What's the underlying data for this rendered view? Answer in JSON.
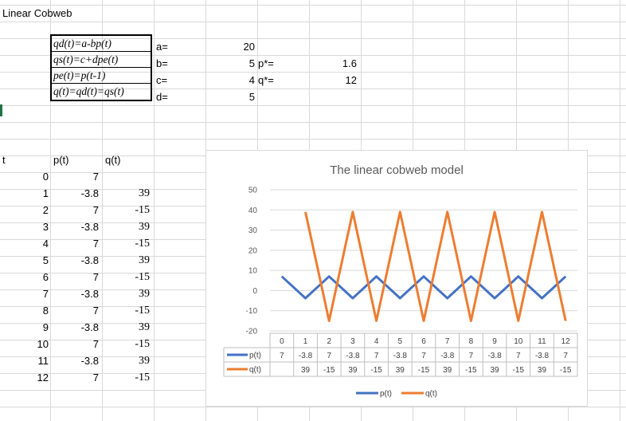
{
  "sheet": {
    "title": "Linear Cobweb",
    "formulas": [
      "qd(t)=a-bp(t)",
      "qs(t)=c+dpe(t)",
      "pe(t)=p(t-1)",
      "q(t)=qd(t)=qs(t)"
    ],
    "params": [
      {
        "label": "a=",
        "value": "20"
      },
      {
        "label": "b=",
        "value": "5"
      },
      {
        "label": "c=",
        "value": "4"
      },
      {
        "label": "d=",
        "value": "5"
      }
    ],
    "equilibrium": [
      {
        "label": "p*=",
        "value": "1.6"
      },
      {
        "label": "q*=",
        "value": "12"
      }
    ],
    "table": {
      "headers": [
        "t",
        "p(t)",
        "q(t)"
      ],
      "rows": [
        {
          "t": "0",
          "p": "7",
          "q": ""
        },
        {
          "t": "1",
          "p": "-3.8",
          "q": "39"
        },
        {
          "t": "2",
          "p": "7",
          "q": "-15"
        },
        {
          "t": "3",
          "p": "-3.8",
          "q": "39"
        },
        {
          "t": "4",
          "p": "7",
          "q": "-15"
        },
        {
          "t": "5",
          "p": "-3.8",
          "q": "39"
        },
        {
          "t": "6",
          "p": "7",
          "q": "-15"
        },
        {
          "t": "7",
          "p": "-3.8",
          "q": "39"
        },
        {
          "t": "8",
          "p": "7",
          "q": "-15"
        },
        {
          "t": "9",
          "p": "-3.8",
          "q": "39"
        },
        {
          "t": "10",
          "p": "7",
          "q": "-15"
        },
        {
          "t": "11",
          "p": "-3.8",
          "q": "39"
        },
        {
          "t": "12",
          "p": "7",
          "q": "-15"
        }
      ]
    }
  },
  "chart_data": {
    "type": "line",
    "title": "The linear cobweb model",
    "categories": [
      "0",
      "1",
      "2",
      "3",
      "4",
      "5",
      "6",
      "7",
      "8",
      "9",
      "10",
      "11",
      "12"
    ],
    "series": [
      {
        "name": "p(t)",
        "color": "#4472c4",
        "values": [
          7,
          -3.8,
          7,
          -3.8,
          7,
          -3.8,
          7,
          -3.8,
          7,
          -3.8,
          7,
          -3.8,
          7
        ]
      },
      {
        "name": "q(t)",
        "color": "#ed7d31",
        "values": [
          null,
          39,
          -15,
          39,
          -15,
          39,
          -15,
          39,
          -15,
          39,
          -15,
          39,
          -15
        ]
      }
    ],
    "table_values": {
      "p": [
        "7",
        "-3.8",
        "7",
        "-3.8",
        "7",
        "-3.8",
        "7",
        "-3.8",
        "7",
        "-3.8",
        "7",
        "-3.8",
        "7"
      ],
      "q": [
        "",
        "39",
        "-15",
        "39",
        "-15",
        "39",
        "-15",
        "39",
        "-15",
        "39",
        "-15",
        "39",
        "-15"
      ]
    },
    "ylim": [
      -20,
      50
    ],
    "yticks": [
      "50",
      "40",
      "30",
      "20",
      "10",
      "0",
      "-10",
      "-20"
    ],
    "grid": true,
    "legend": "bottom",
    "data_table": true
  }
}
